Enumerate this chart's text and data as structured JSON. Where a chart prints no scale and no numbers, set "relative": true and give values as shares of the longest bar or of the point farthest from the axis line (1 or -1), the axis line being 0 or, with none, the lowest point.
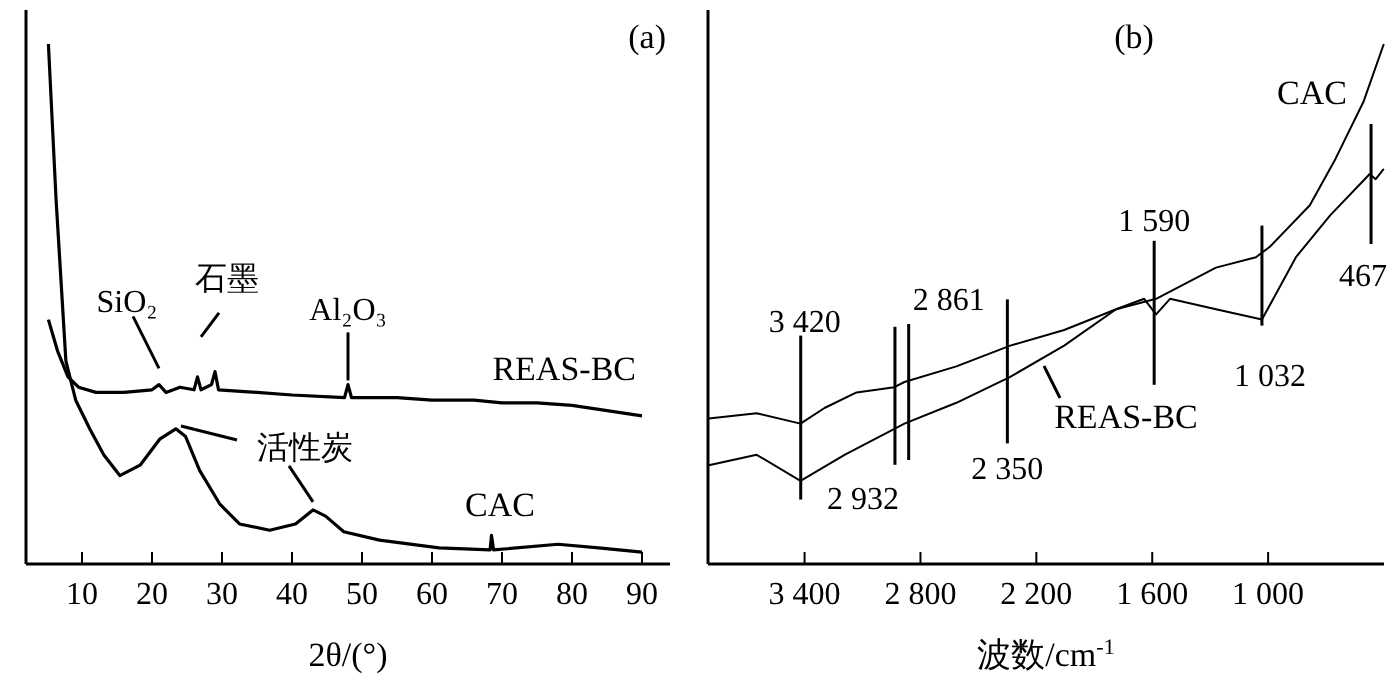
{
  "chart_data": [
    {
      "type": "line",
      "relative": true,
      "xlabel": "2θ/(°)",
      "xlim": [
        2,
        94
      ],
      "xticks": [
        10,
        20,
        30,
        40,
        50,
        60,
        70,
        80,
        90
      ],
      "tick_labels": "x",
      "series": [
        {
          "name": "REAS-BC",
          "color": "#000000",
          "x": [
            5.2,
            6.5,
            8,
            9.5,
            12,
            16,
            20,
            21,
            22,
            24,
            26,
            26.5,
            27,
            28.5,
            29,
            29.5,
            35,
            40,
            47.5,
            48,
            48.5,
            55,
            60,
            66,
            70,
            75,
            80,
            85,
            90
          ],
          "values": [
            0.47,
            0.41,
            0.36,
            0.34,
            0.33,
            0.33,
            0.335,
            0.345,
            0.33,
            0.34,
            0.335,
            0.36,
            0.335,
            0.345,
            0.37,
            0.335,
            0.33,
            0.325,
            0.32,
            0.345,
            0.32,
            0.32,
            0.315,
            0.315,
            0.31,
            0.31,
            0.305,
            0.295,
            0.285
          ]
        },
        {
          "name": "CAC",
          "color": "#000000",
          "x": [
            5.2,
            6.3,
            7.7,
            9.1,
            11.1,
            13.1,
            15.4,
            18.3,
            21.1,
            23.4,
            24.8,
            26.8,
            29.7,
            32.5,
            36.8,
            40.5,
            43,
            44.8,
            47.4,
            52.5,
            61,
            68.3,
            68.5,
            68.8,
            78,
            83.8,
            90
          ],
          "values": [
            1,
            0.7,
            0.39,
            0.315,
            0.26,
            0.21,
            0.17,
            0.19,
            0.24,
            0.26,
            0.245,
            0.18,
            0.115,
            0.077,
            0.065,
            0.077,
            0.104,
            0.092,
            0.062,
            0.046,
            0.031,
            0.027,
            0.055,
            0.027,
            0.038,
            0.031,
            0.023
          ]
        }
      ],
      "annotations": [
        {
          "text": "SiO₂",
          "x": 21,
          "y": 0.33
        },
        {
          "text": "石墨",
          "x": 27,
          "y": 0.36
        },
        {
          "text": "Al₂O₃",
          "x": 48,
          "y": 0.33
        },
        {
          "text": "活性炭",
          "x": 43,
          "y": 0.104
        },
        "(a)"
      ]
    },
    {
      "type": "line",
      "relative": true,
      "xlabel": "波数/cm$^{-1}$",
      "xlim": [
        3900,
        400
      ],
      "xticks": [
        {
          "value": 3400,
          "label": "3 400"
        },
        {
          "value": 2800,
          "label": "2 800"
        },
        {
          "value": 2200,
          "label": "2 200"
        },
        {
          "value": 1600,
          "label": "1 600"
        },
        {
          "value": 1000,
          "label": "1 000"
        }
      ],
      "tick_labels": "x",
      "series": [
        {
          "name": "REAS-BC",
          "color": "#000000",
          "x": [
            3896,
            3648,
            3421,
            3193,
            2935,
            2883,
            2614,
            2335,
            2056,
            1787,
            1642,
            1580,
            1508,
            1270,
            1032,
            856,
            680,
            474,
            443,
            401
          ],
          "values": [
            0.19,
            0.21,
            0.16,
            0.21,
            0.26,
            0.27,
            0.31,
            0.36,
            0.42,
            0.49,
            0.51,
            0.48,
            0.51,
            0.49,
            0.47,
            0.59,
            0.67,
            0.75,
            0.74,
            0.76
          ]
        },
        {
          "name": "CAC",
          "color": "#000000",
          "x": [
            3896,
            3648,
            3421,
            3297,
            3131,
            2935,
            2883,
            2614,
            2335,
            2056,
            1787,
            1580,
            1270,
            1063,
            991,
            784,
            650,
            505,
            401
          ],
          "values": [
            0.28,
            0.29,
            0.27,
            0.3,
            0.33,
            0.34,
            0.35,
            0.38,
            0.42,
            0.45,
            0.49,
            0.51,
            0.57,
            0.59,
            0.61,
            0.69,
            0.78,
            0.89,
            1
          ]
        }
      ],
      "annotations": [
        {
          "text": "3 420",
          "x": 3420,
          "y": 0.27
        },
        {
          "text": "2 932",
          "x": 2932,
          "y": 0.26
        },
        {
          "text": "2 861",
          "x": 2861,
          "y": 0.35
        },
        {
          "text": "2 350",
          "x": 2350,
          "y": 0.355
        },
        {
          "text": "1 590",
          "x": 1590,
          "y": 0.51
        },
        {
          "text": "1 032",
          "x": 1032,
          "y": 0.47
        },
        {
          "text": "467",
          "x": 467,
          "y": 0.75
        },
        "(b)"
      ]
    }
  ]
}
